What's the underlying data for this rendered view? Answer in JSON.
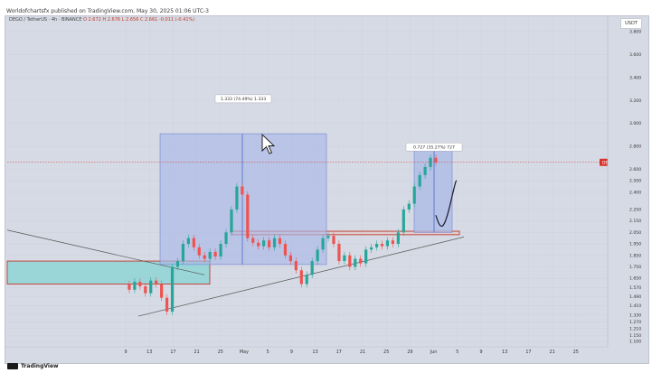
{
  "header": {
    "published_line": "Worldofchartsfx published on TradingView.com, May 30, 2025 01:06 UTC-3"
  },
  "legend": {
    "symbol": "DEGO / TetherUS · 4h · BINANCE",
    "values": "O 2.672  H 2.676  L 2.656  C 2.661  -0.011 (-0.41%)"
  },
  "currency_badge": "USDT",
  "price_label": "DEGOUSDT  05:52:57",
  "measure_labels": {
    "first": "1.333 (74.49%) 1.333",
    "second": "0.727 (35.27%) 727"
  },
  "footer": {
    "brand": "TradingView"
  },
  "colors": {
    "background": "#d6dae4",
    "up": "#26a69a",
    "down": "#ef5350",
    "measure_fill": "#aab9e6",
    "demand_zone": "#8fd3d6",
    "zone_border": "#c0392b",
    "price_badge": "#d9322b"
  },
  "chart_data": {
    "type": "candlestick",
    "interval": "4h",
    "y_axis_ticks": [
      1.1,
      1.15,
      1.21,
      1.27,
      1.33,
      1.41,
      1.49,
      1.57,
      1.65,
      1.75,
      1.85,
      1.95,
      2.05,
      2.15,
      2.25,
      2.4,
      2.5,
      2.6,
      2.8,
      3.0,
      3.2,
      3.4,
      3.6,
      3.8
    ],
    "y_axis_labels": [
      "1.100",
      "1.150",
      "1.210",
      "1.270",
      "1.330",
      "1.410",
      "1.490",
      "1.570",
      "1.650",
      "1.750",
      "1.850",
      "1.950",
      "2.050",
      "2.150",
      "2.250",
      "2.400",
      "2.500",
      "2.600",
      "2.800",
      "3.000",
      "3.200",
      "3.400",
      "3.600",
      "3.800"
    ],
    "x_axis_labels": [
      "9",
      "13",
      "17",
      "21",
      "25",
      "May",
      "5",
      "9",
      "13",
      "17",
      "21",
      "25",
      "29",
      "Jun",
      "5",
      "9",
      "13",
      "17",
      "21",
      "25"
    ],
    "current_price": 2.661,
    "price_path": [
      1.6,
      1.55,
      1.62,
      1.58,
      1.52,
      1.63,
      1.6,
      1.48,
      1.36,
      1.75,
      1.8,
      1.95,
      2.0,
      1.92,
      1.85,
      1.82,
      1.88,
      1.84,
      1.95,
      2.05,
      2.25,
      2.45,
      2.38,
      2.0,
      1.96,
      1.93,
      1.98,
      1.92,
      2.0,
      1.95,
      1.85,
      1.8,
      1.72,
      1.6,
      1.68,
      1.8,
      1.9,
      2.0,
      2.02,
      1.95,
      1.8,
      1.85,
      1.75,
      1.82,
      1.78,
      1.9,
      1.92,
      1.95,
      1.93,
      1.98,
      1.95,
      2.05,
      2.25,
      2.3,
      2.45,
      2.55,
      2.62,
      2.7,
      2.66
    ],
    "projection": [
      2.03,
      2.1,
      2.3,
      2.5
    ]
  }
}
